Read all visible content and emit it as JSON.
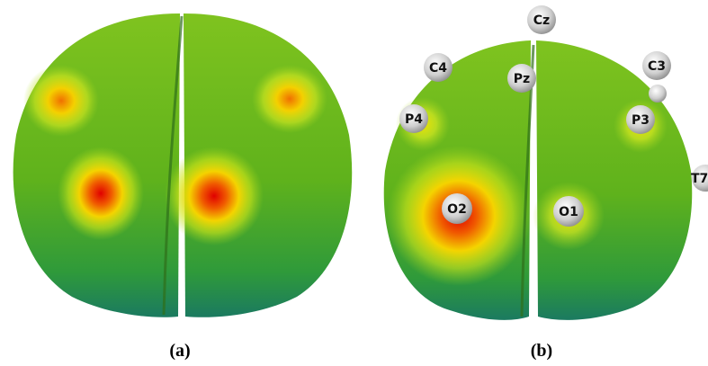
{
  "panels": [
    {
      "caption": "(a)"
    },
    {
      "caption": "(b)",
      "electrodes": [
        "Cz",
        "C4",
        "Pz",
        "C3",
        "P4",
        "P3",
        "O2",
        "O1",
        "T7"
      ]
    }
  ]
}
